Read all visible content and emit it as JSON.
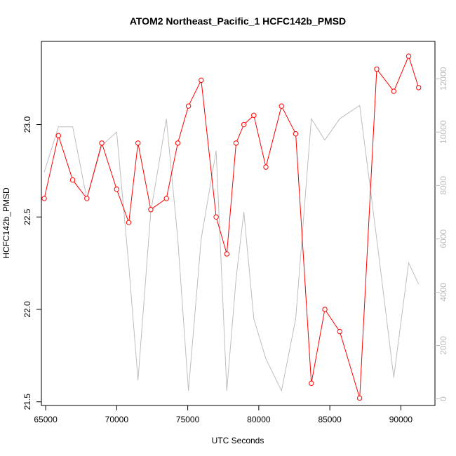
{
  "chart_data": {
    "type": "line",
    "title": "ATOM2 Northeast_Pacific_1 HCFC142b_PMSD",
    "xlabel": "UTC Seconds",
    "ylabel": "HCFC142b_PMSD",
    "xlim": [
      64700,
      92400
    ],
    "ylim": [
      21.48,
      23.45
    ],
    "y2lim": [
      -250,
      13400
    ],
    "x_ticks": [
      65000,
      70000,
      75000,
      80000,
      85000,
      90000
    ],
    "y_ticks": [
      21.5,
      22.0,
      22.5,
      23.0
    ],
    "y_tick_labels": [
      "21.5",
      "22.0",
      "22.5",
      "23.0"
    ],
    "y2_ticks": [
      0,
      2000,
      4000,
      6000,
      8000,
      10000,
      12000
    ],
    "grid": false,
    "legend": "none",
    "series": [
      {
        "axis": "left",
        "color": "#ff0000",
        "style": "line+points",
        "x": [
          64900,
          65900,
          66900,
          67900,
          68950,
          70000,
          70850,
          71500,
          72400,
          73500,
          74300,
          75050,
          75950,
          77000,
          77750,
          78400,
          78950,
          79650,
          80500,
          81600,
          82600,
          83700,
          84650,
          85700,
          87100,
          88300,
          89500,
          90550,
          91250
        ],
        "values": [
          22.6,
          22.94,
          22.7,
          22.6,
          22.9,
          22.65,
          22.47,
          22.9,
          22.54,
          22.6,
          22.9,
          23.1,
          23.24,
          22.5,
          22.3,
          22.9,
          23.0,
          23.05,
          22.77,
          23.1,
          22.95,
          21.6,
          22.0,
          21.88,
          21.52,
          23.3,
          23.18,
          23.37,
          23.2
        ]
      },
      {
        "axis": "right",
        "color": "#bebebe",
        "style": "line",
        "x": [
          64900,
          65900,
          66900,
          67900,
          68950,
          70000,
          70850,
          71500,
          72400,
          73500,
          74300,
          75050,
          75950,
          77000,
          77750,
          78400,
          78950,
          79650,
          80500,
          81600,
          82600,
          83700,
          84650,
          85700,
          87100,
          88300,
          89500,
          90550,
          91250
        ],
        "values": [
          8500,
          10200,
          10200,
          7500,
          9500,
          10000,
          5000,
          700,
          7000,
          10500,
          6000,
          300,
          6000,
          9300,
          300,
          4500,
          7000,
          3000,
          1500,
          300,
          3000,
          10500,
          9700,
          10500,
          11000,
          6000,
          800,
          5100,
          4300
        ]
      }
    ]
  }
}
